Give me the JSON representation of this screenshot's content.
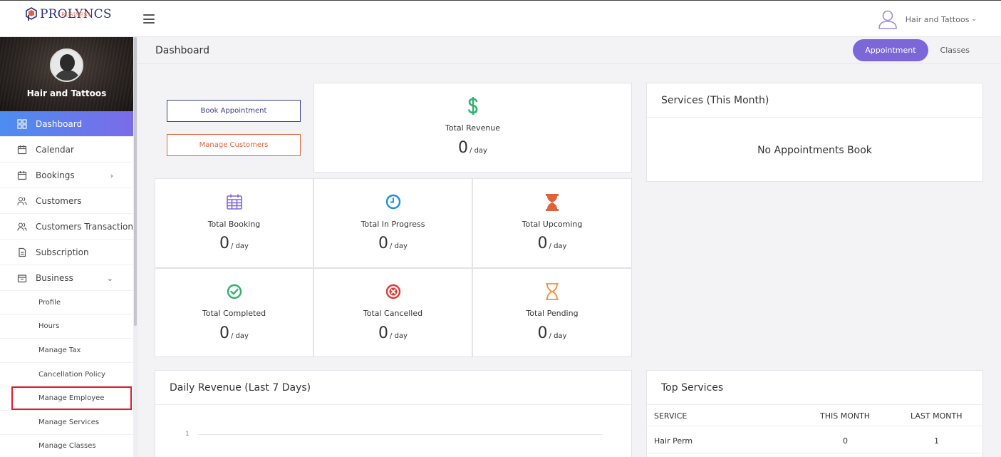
{
  "header": {
    "brand_name": "PROLYNCS",
    "brand_sub": "BUSINESS",
    "user_name": "Hair and Tattoos",
    "user_caret": "⌄"
  },
  "sidebar": {
    "profile_name": "Hair and Tattoos",
    "items": [
      {
        "label": "Dashboard",
        "icon": "grid-icon"
      },
      {
        "label": "Calendar",
        "icon": "calendar-icon"
      },
      {
        "label": "Bookings",
        "icon": "calendar-icon",
        "chevron": "›"
      },
      {
        "label": "Customers",
        "icon": "users-icon"
      },
      {
        "label": "Customers Transaction",
        "icon": "users-icon"
      },
      {
        "label": "Subscription",
        "icon": "document-icon"
      },
      {
        "label": "Business",
        "icon": "briefcase-icon",
        "chevron": "⌄"
      }
    ],
    "sub_items": [
      {
        "label": "Profile"
      },
      {
        "label": "Hours"
      },
      {
        "label": "Manage Tax"
      },
      {
        "label": "Cancellation Policy"
      },
      {
        "label": "Manage Employee"
      },
      {
        "label": "Manage Services"
      },
      {
        "label": "Manage Classes"
      }
    ]
  },
  "page": {
    "title": "Dashboard",
    "toggle": {
      "on": "Appointment",
      "off": "Classes"
    }
  },
  "actions": {
    "book": "Book Appointment",
    "customers": "Manage Customers"
  },
  "per_day": "/ day",
  "stats": {
    "revenue": {
      "label": "Total Revenue",
      "value": "0",
      "icon": "dollar-icon",
      "color": "#2fb36b"
    },
    "booking": {
      "label": "Total Booking",
      "value": "0",
      "icon": "calendar-icon",
      "color": "#7c67d8"
    },
    "in_progress": {
      "label": "Total In Progress",
      "value": "0",
      "icon": "clock-icon",
      "color": "#1f8fe0"
    },
    "upcoming": {
      "label": "Total Upcoming",
      "value": "0",
      "icon": "hourglass-icon",
      "color": "#e0623b"
    },
    "completed": {
      "label": "Total Completed",
      "value": "0",
      "icon": "check-circle-icon",
      "color": "#2fb36b"
    },
    "cancelled": {
      "label": "Total Cancelled",
      "value": "0",
      "icon": "x-circle-icon",
      "color": "#e53935"
    },
    "pending": {
      "label": "Total Pending",
      "value": "0",
      "icon": "hourglass-outline-icon",
      "color": "#f0923b"
    }
  },
  "services_month": {
    "title": "Services (This Month)",
    "empty": "No Appointments Book"
  },
  "daily_revenue": {
    "title": "Daily Revenue (Last 7 Days)",
    "tick": "1"
  },
  "top_services": {
    "title": "Top Services",
    "columns": [
      "SERVICE",
      "THIS MONTH",
      "LAST MONTH"
    ],
    "rows": [
      {
        "service": "Hair Perm",
        "this_month": "0",
        "last_month": "1"
      }
    ]
  }
}
